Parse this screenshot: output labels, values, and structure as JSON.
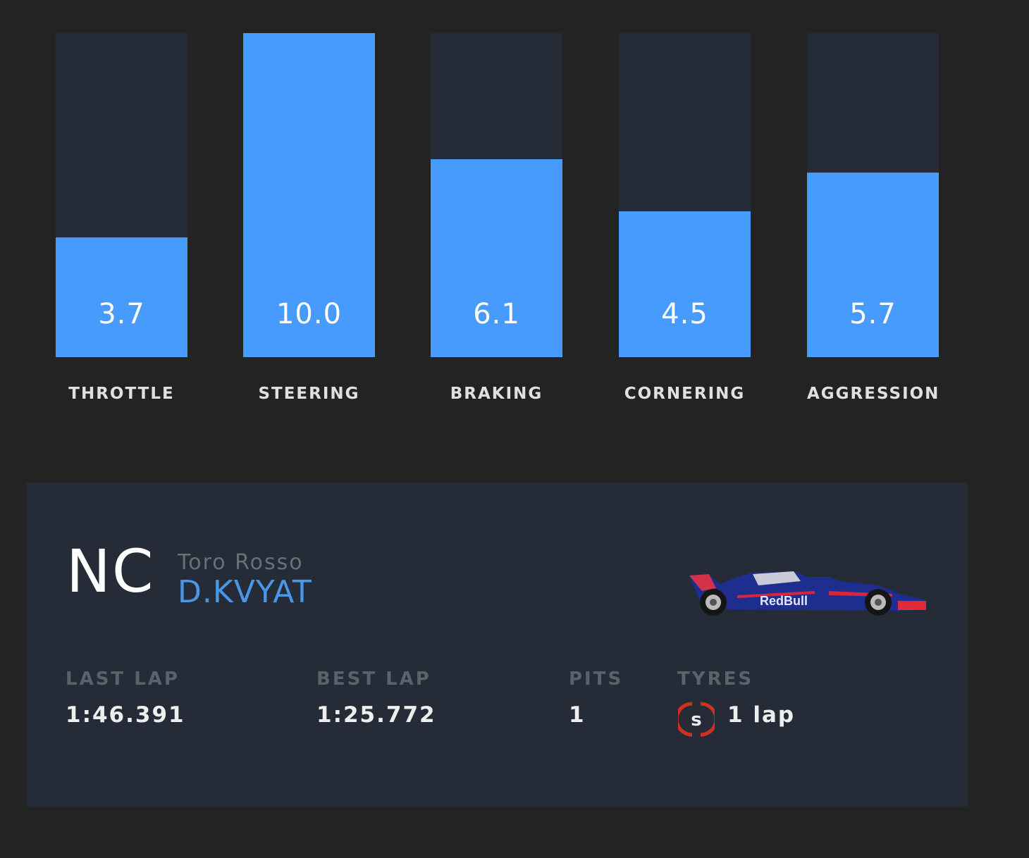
{
  "bars": [
    {
      "label": "THROTTLE",
      "value": "3.7",
      "fraction": 0.37
    },
    {
      "label": "STEERING",
      "value": "10.0",
      "fraction": 1.0
    },
    {
      "label": "BRAKING",
      "value": "6.1",
      "fraction": 0.61
    },
    {
      "label": "CORNERING",
      "value": "4.5",
      "fraction": 0.45
    },
    {
      "label": "AGGRESSION",
      "value": "5.7",
      "fraction": 0.57
    }
  ],
  "driver": {
    "position": "NC",
    "team": "Toro Rosso",
    "name": "D.KVYAT"
  },
  "stats": {
    "last_lap_label": "LAST LAP",
    "last_lap": "1:46.391",
    "best_lap_label": "BEST LAP",
    "best_lap": "1:25.772",
    "pits_label": "PITS",
    "pits": "1",
    "tyres_label": "TYRES",
    "tyre_compound": "s",
    "tyre_laps": "1 lap"
  },
  "colors": {
    "accent": "#469bfd",
    "soft_tyre": "#d0321f",
    "card": "#262c37"
  }
}
